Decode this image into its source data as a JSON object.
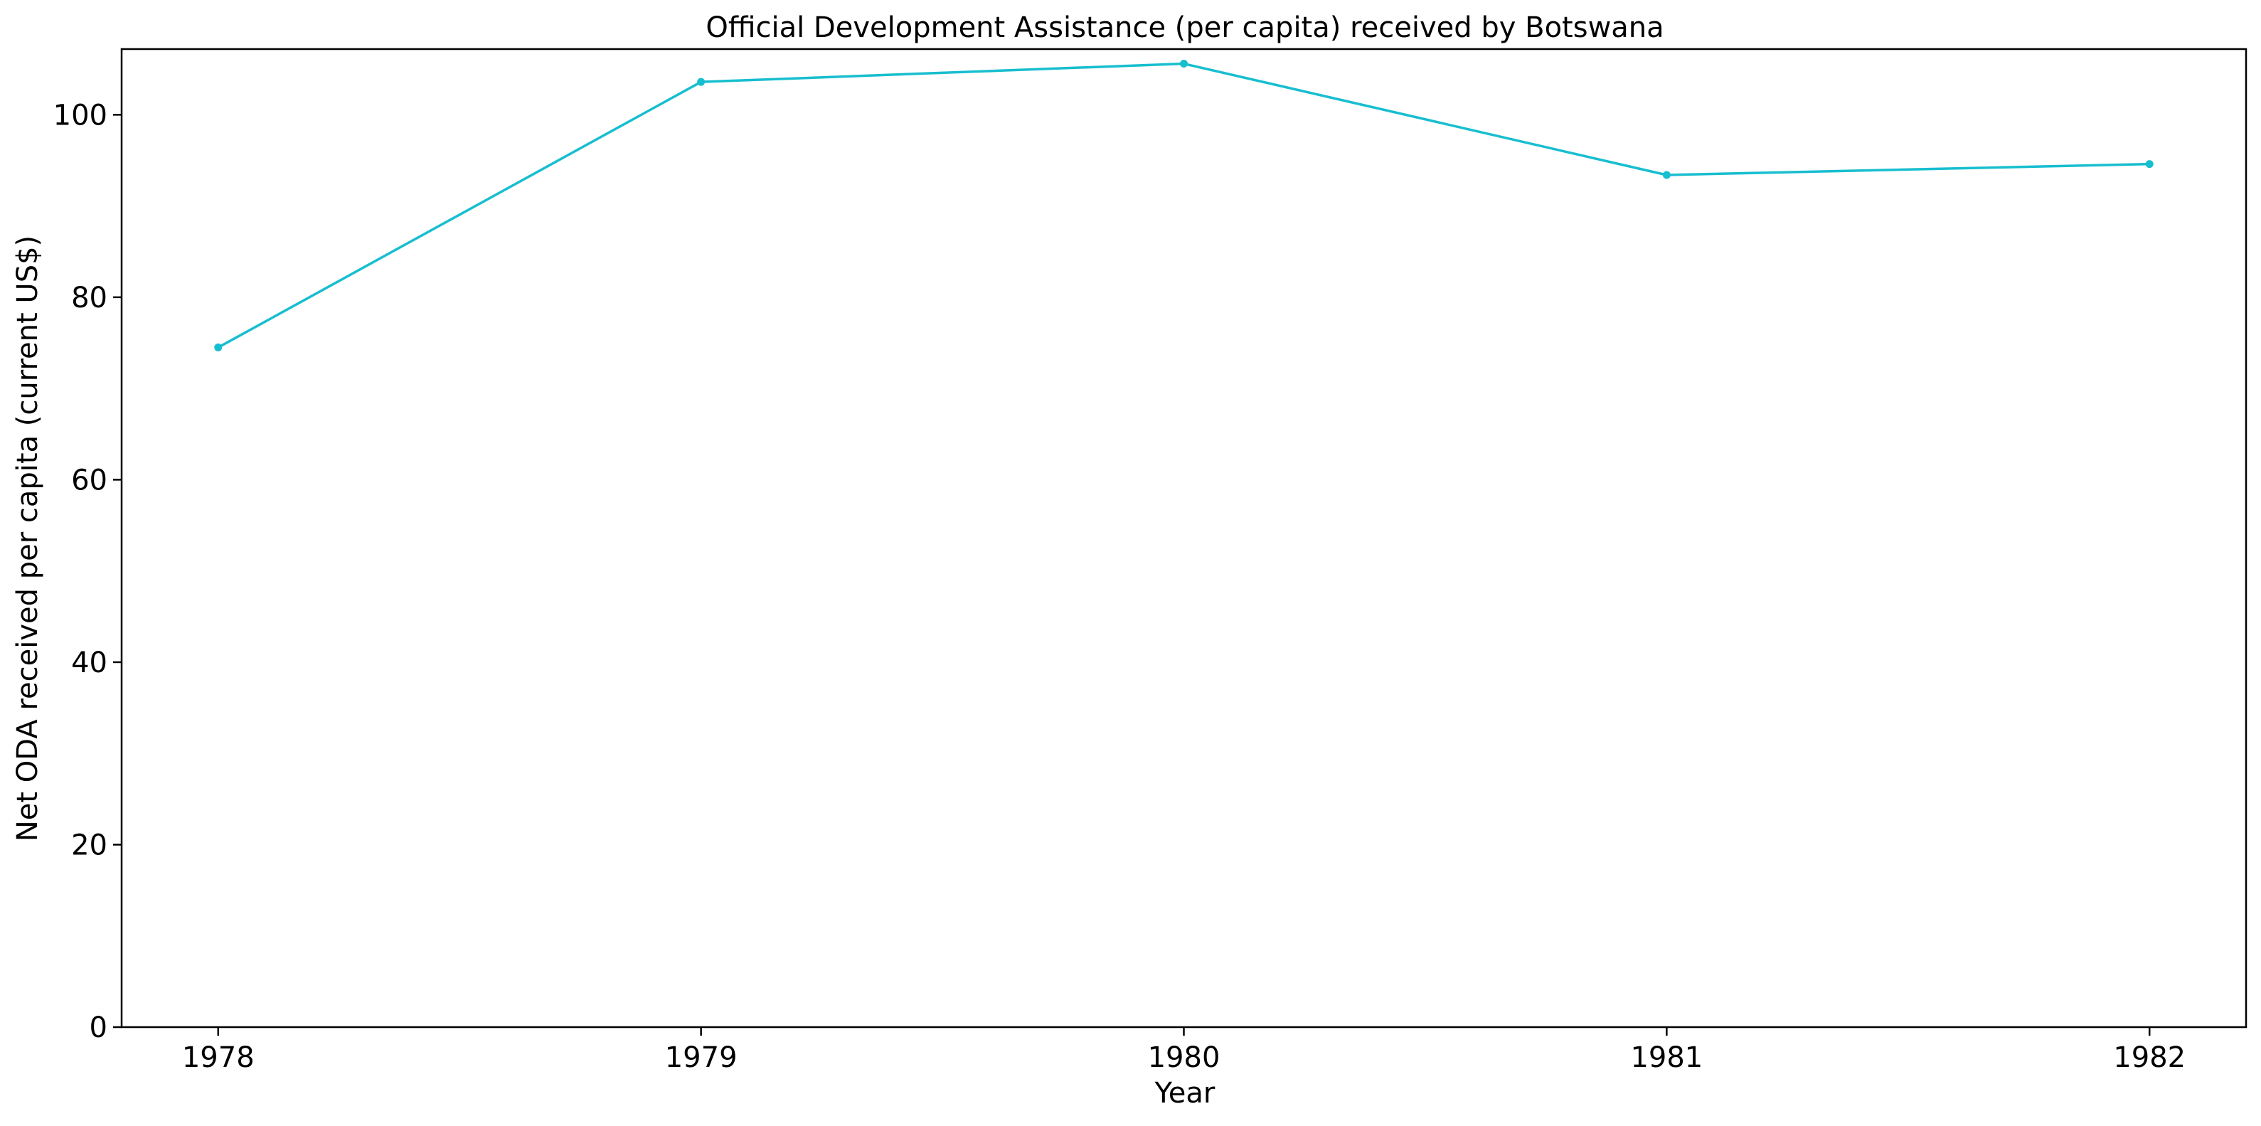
{
  "chart_data": {
    "type": "line",
    "title": "Official Development Assistance (per capita) received by Botswana",
    "xlabel": "Year",
    "ylabel": "Net ODA received per capita (current US$)",
    "x": [
      1978,
      1979,
      1980,
      1981,
      1982
    ],
    "series": [
      {
        "values": [
          74.5,
          103.6,
          105.6,
          93.4,
          94.6
        ],
        "color": "#17becf"
      }
    ],
    "x_ticks": [
      "1978",
      "1979",
      "1980",
      "1981",
      "1982"
    ],
    "y_ticks": [
      0,
      20,
      40,
      60,
      80,
      100
    ],
    "xlim": [
      1977.8,
      1982.2
    ],
    "ylim": [
      0,
      107.2
    ],
    "grid": false,
    "legend": "none"
  }
}
